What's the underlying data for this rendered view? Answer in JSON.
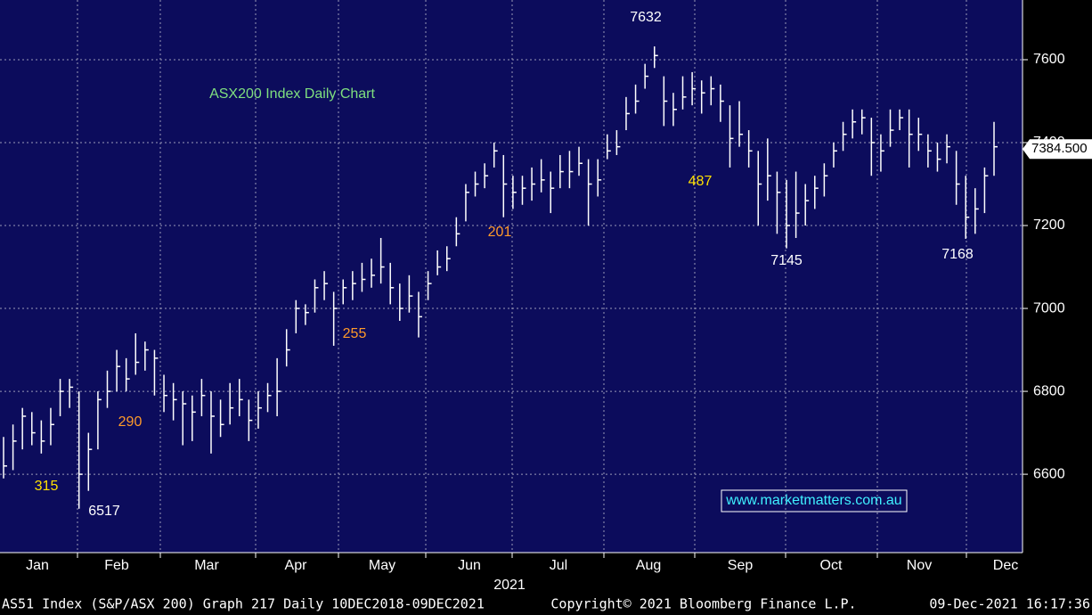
{
  "chart_data": {
    "type": "ohlc",
    "title": "ASX200 Index Daily Chart",
    "watermark": "www.marketmatters.com.au",
    "x_label": "2021",
    "categories": [
      "Jan",
      "Feb",
      "Mar",
      "Apr",
      "May",
      "Jun",
      "Jul",
      "Aug",
      "Sep",
      "Oct",
      "Nov",
      "Dec"
    ],
    "color": "#ffffff",
    "ylim": [
      6411,
      7744
    ],
    "yticks": [
      6600,
      6800,
      7000,
      7200,
      7400,
      7600
    ],
    "grid": true,
    "last_price": {
      "value": 7384.5,
      "label": "7384.500"
    },
    "annotations": [
      7632,
      6517,
      7145,
      7168,
      315,
      290,
      255,
      201,
      487
    ],
    "bars": [
      [
        6690,
        6590,
        6620
      ],
      [
        6720,
        6610,
        6680
      ],
      [
        6760,
        6660,
        6740
      ],
      [
        6750,
        6670,
        6700
      ],
      [
        6730,
        6650,
        6680
      ],
      [
        6760,
        6670,
        6720
      ],
      [
        6830,
        6740,
        6800
      ],
      [
        6830,
        6760,
        6810
      ],
      [
        6800,
        6517,
        6600
      ],
      [
        6700,
        6560,
        6660
      ],
      [
        6800,
        6660,
        6780
      ],
      [
        6850,
        6760,
        6800
      ],
      [
        6900,
        6800,
        6860
      ],
      [
        6880,
        6800,
        6830
      ],
      [
        6940,
        6840,
        6870
      ],
      [
        6920,
        6850,
        6900
      ],
      [
        6900,
        6790,
        6880
      ],
      [
        6840,
        6750,
        6790
      ],
      [
        6820,
        6730,
        6780
      ],
      [
        6800,
        6670,
        6770
      ],
      [
        6790,
        6680,
        6750
      ],
      [
        6830,
        6740,
        6790
      ],
      [
        6800,
        6650,
        6740
      ],
      [
        6780,
        6690,
        6720
      ],
      [
        6820,
        6720,
        6760
      ],
      [
        6830,
        6740,
        6780
      ],
      [
        6780,
        6680,
        6730
      ],
      [
        6800,
        6710,
        6760
      ],
      [
        6820,
        6750,
        6790
      ],
      [
        6880,
        6740,
        6800
      ],
      [
        6950,
        6860,
        6900
      ],
      [
        7020,
        6940,
        7000
      ],
      [
        7010,
        6960,
        6990
      ],
      [
        7070,
        6990,
        7050
      ],
      [
        7090,
        7020,
        7060
      ],
      [
        7040,
        6910,
        7000
      ],
      [
        7070,
        7010,
        7050
      ],
      [
        7090,
        7020,
        7060
      ],
      [
        7110,
        7040,
        7070
      ],
      [
        7120,
        7050,
        7080
      ],
      [
        7170,
        7060,
        7100
      ],
      [
        7110,
        7010,
        7050
      ],
      [
        7060,
        6970,
        7000
      ],
      [
        7080,
        6990,
        7030
      ],
      [
        7040,
        6930,
        6980
      ],
      [
        7090,
        7020,
        7060
      ],
      [
        7140,
        7080,
        7100
      ],
      [
        7150,
        7090,
        7120
      ],
      [
        7220,
        7150,
        7180
      ],
      [
        7300,
        7210,
        7280
      ],
      [
        7330,
        7270,
        7300
      ],
      [
        7350,
        7290,
        7320
      ],
      [
        7400,
        7340,
        7380
      ],
      [
        7370,
        7220,
        7300
      ],
      [
        7320,
        7240,
        7280
      ],
      [
        7320,
        7250,
        7290
      ],
      [
        7340,
        7260,
        7300
      ],
      [
        7360,
        7280,
        7310
      ],
      [
        7330,
        7230,
        7290
      ],
      [
        7370,
        7290,
        7330
      ],
      [
        7380,
        7290,
        7330
      ],
      [
        7390,
        7320,
        7350
      ],
      [
        7360,
        7200,
        7300
      ],
      [
        7360,
        7270,
        7310
      ],
      [
        7420,
        7360,
        7380
      ],
      [
        7430,
        7370,
        7390
      ],
      [
        7510,
        7430,
        7470
      ],
      [
        7540,
        7470,
        7500
      ],
      [
        7590,
        7530,
        7560
      ],
      [
        7632,
        7580,
        7610
      ],
      [
        7560,
        7440,
        7500
      ],
      [
        7520,
        7440,
        7480
      ],
      [
        7560,
        7480,
        7510
      ],
      [
        7570,
        7490,
        7530
      ],
      [
        7550,
        7470,
        7520
      ],
      [
        7560,
        7490,
        7530
      ],
      [
        7540,
        7450,
        7500
      ],
      [
        7490,
        7340,
        7410
      ],
      [
        7500,
        7390,
        7420
      ],
      [
        7430,
        7340,
        7380
      ],
      [
        7380,
        7200,
        7300
      ],
      [
        7410,
        7260,
        7320
      ],
      [
        7330,
        7180,
        7280
      ],
      [
        7310,
        7145,
        7200
      ],
      [
        7330,
        7170,
        7230
      ],
      [
        7300,
        7200,
        7260
      ],
      [
        7320,
        7240,
        7290
      ],
      [
        7350,
        7270,
        7320
      ],
      [
        7400,
        7340,
        7380
      ],
      [
        7450,
        7380,
        7420
      ],
      [
        7480,
        7410,
        7450
      ],
      [
        7480,
        7420,
        7460
      ],
      [
        7460,
        7320,
        7400
      ],
      [
        7420,
        7330,
        7380
      ],
      [
        7480,
        7390,
        7430
      ],
      [
        7480,
        7430,
        7460
      ],
      [
        7480,
        7340,
        7420
      ],
      [
        7460,
        7380,
        7420
      ],
      [
        7420,
        7340,
        7380
      ],
      [
        7400,
        7330,
        7360
      ],
      [
        7420,
        7350,
        7390
      ],
      [
        7380,
        7250,
        7300
      ],
      [
        7320,
        7168,
        7220
      ],
      [
        7290,
        7180,
        7240
      ],
      [
        7340,
        7230,
        7320
      ],
      [
        7450,
        7320,
        7390
      ]
    ]
  },
  "footer": {
    "left": "AS51 Index (S&P/ASX 200) Graph 217  Daily 10DEC2018-09DEC2021",
    "center": "Copyright© 2021 Bloomberg Finance L.P.",
    "right": "09-Dec-2021 16:17:36"
  }
}
